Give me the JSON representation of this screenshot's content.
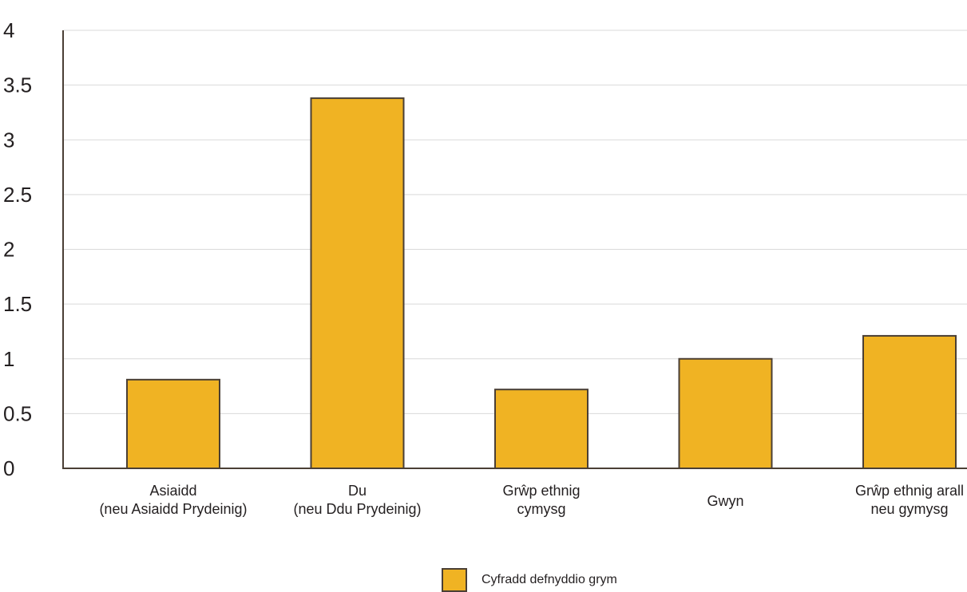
{
  "chart_data": {
    "type": "bar",
    "title": "",
    "xlabel": "",
    "ylabel": "",
    "ylim": [
      0,
      4
    ],
    "yticks": [
      "0",
      "0.5",
      "1",
      "1.5",
      "2",
      "2.5",
      "3",
      "3.5",
      "4"
    ],
    "grid": true,
    "legend_position": "bottom-center",
    "categories": [
      [
        "Asiaidd",
        "(neu Asiaidd Prydeinig)"
      ],
      [
        "Du",
        "(neu Ddu Prydeinig)"
      ],
      [
        "Grŵp ethnig",
        "cymysg"
      ],
      [
        "Gwyn"
      ],
      [
        "Grŵp ethnig arall",
        "neu gymysg"
      ]
    ],
    "series": [
      {
        "name": "Cyfradd defnyddio grym",
        "values": [
          0.81,
          3.38,
          0.72,
          1.0,
          1.21
        ]
      }
    ],
    "colors": {
      "bar": "#F0B323",
      "bar_edge": "#4A3F35",
      "grid": "#D9D9D9",
      "axis": "#4A3F35",
      "text": "#231F20"
    }
  }
}
